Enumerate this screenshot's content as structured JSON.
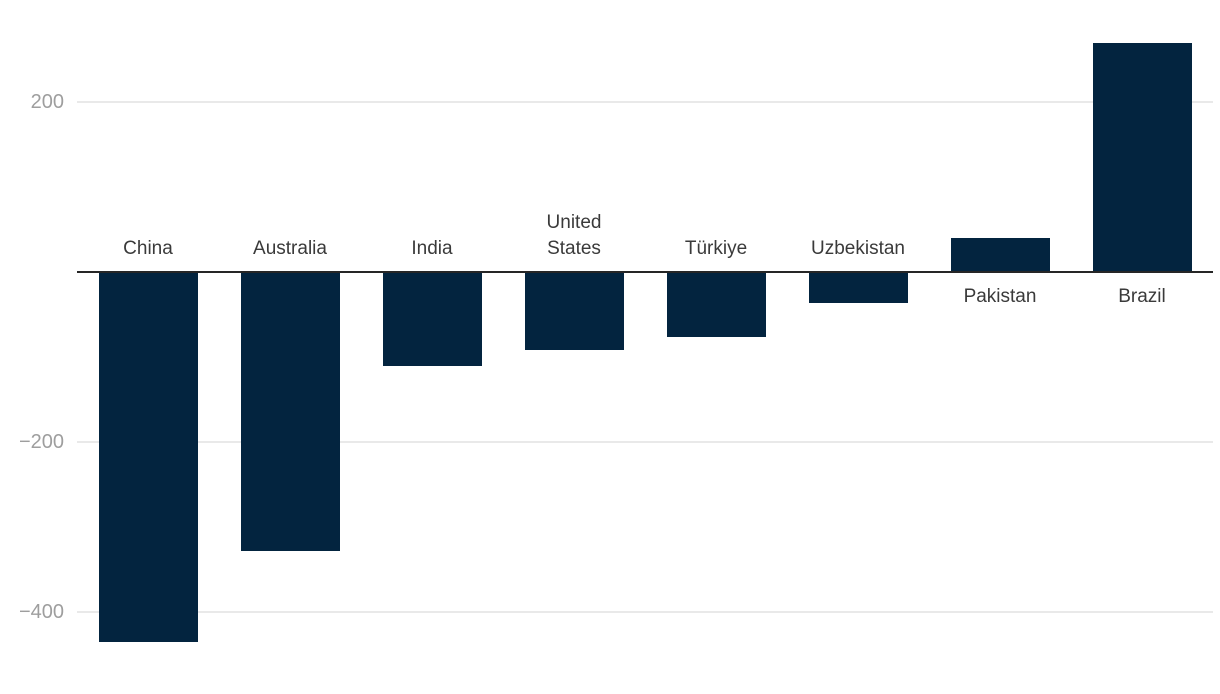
{
  "chart_data": {
    "type": "bar",
    "title": "",
    "subtitle": "",
    "xlabel": "",
    "ylabel": "",
    "categories": [
      "China",
      "Australia",
      "India",
      "United States",
      "Türkiye",
      "Uzbekistan",
      "Pakistan",
      "Brazil"
    ],
    "values": [
      -435,
      -328,
      -110,
      -92,
      -77,
      -36,
      40,
      270
    ],
    "bars": [
      {
        "label": "China",
        "value": -435
      },
      {
        "label": "Australia",
        "value": -328
      },
      {
        "label": "India",
        "value": -110
      },
      {
        "label": "United States",
        "label_display": "United\nStates",
        "value": -92
      },
      {
        "label": "Türkiye",
        "value": -77
      },
      {
        "label": "Uzbekistan",
        "value": -36
      },
      {
        "label": "Pakistan",
        "value": 40
      },
      {
        "label": "Brazil",
        "value": 270
      }
    ],
    "yticks": [
      {
        "label": "200",
        "value": 200
      },
      {
        "label": "−200",
        "value": -200
      },
      {
        "label": "−400",
        "value": -400
      }
    ],
    "ylim": [
      -490,
      320
    ],
    "grid": true,
    "legend": false,
    "zero_line": true,
    "colors": {
      "bar": "#03243f",
      "gridline": "#e9e9e9",
      "zero_line": "#262626",
      "tick_label": "#9e9e9e",
      "category_label": "#3a3a3a",
      "background": "#ffffff"
    }
  }
}
